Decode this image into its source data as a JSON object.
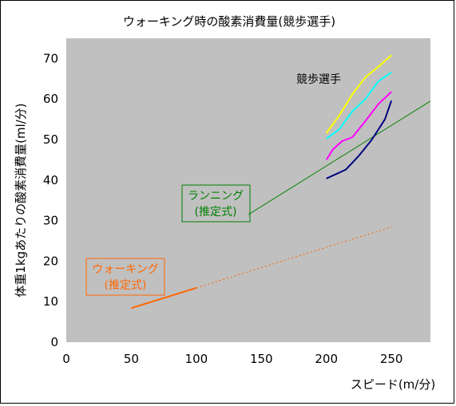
{
  "chart_data": {
    "type": "line",
    "title": "ウォーキング時の酸素消費量(競歩選手)",
    "xlabel": "スピード(m/分)",
    "ylabel": "体重1kgあたりの酸素消費量(ml/分)",
    "xlim": [
      0,
      280
    ],
    "ylim": [
      0,
      75
    ],
    "xticks": [
      0,
      50,
      100,
      150,
      200,
      250
    ],
    "yticks": [
      0,
      10,
      20,
      30,
      40,
      50,
      60,
      70
    ],
    "grid": false,
    "plot_background": "#c0c0c0",
    "series": [
      {
        "color": "#ff6600",
        "style": "solid",
        "width": 2,
        "x": [
          50,
          100
        ],
        "y": [
          8.4,
          13.4
        ]
      },
      {
        "color": "#ff6600",
        "style": "dotted",
        "width": 1,
        "x": [
          100,
          250
        ],
        "y": [
          13.4,
          28.4
        ]
      },
      {
        "color": "#008000",
        "style": "solid",
        "width": 1,
        "x": [
          140,
          280
        ],
        "y": [
          31.5,
          59.5
        ]
      },
      {
        "color": "#000080",
        "style": "solid",
        "width": 2,
        "x": [
          200,
          215,
          225,
          235,
          245,
          250
        ],
        "y": [
          40.4,
          42.6,
          46.0,
          50.0,
          55.0,
          59.6
        ]
      },
      {
        "color": "#ff00ff",
        "style": "solid",
        "width": 2,
        "x": [
          200,
          205,
          212,
          220,
          230,
          240,
          250
        ],
        "y": [
          45.0,
          47.6,
          49.6,
          50.6,
          54.6,
          58.8,
          61.8
        ]
      },
      {
        "color": "#00ffff",
        "style": "solid",
        "width": 2,
        "x": [
          200,
          210,
          220,
          230,
          240,
          250
        ],
        "y": [
          50.2,
          52.6,
          57.0,
          60.0,
          64.4,
          66.6
        ]
      },
      {
        "color": "#ffff00",
        "style": "solid",
        "width": 2,
        "x": [
          200,
          210,
          220,
          230,
          240,
          250
        ],
        "y": [
          51.6,
          56.0,
          61.2,
          65.4,
          68.0,
          70.8
        ]
      }
    ],
    "annotations": [
      {
        "id": "walk",
        "lines": [
          "ウォーキング",
          "(推定式)"
        ],
        "color": "#ff6600",
        "border": true
      },
      {
        "id": "run",
        "lines": [
          "ランニング",
          "(推定式)"
        ],
        "color": "#008000",
        "border": true
      },
      {
        "id": "athlete",
        "lines": [
          "競歩選手"
        ],
        "color": "#000000",
        "border": false
      }
    ]
  }
}
